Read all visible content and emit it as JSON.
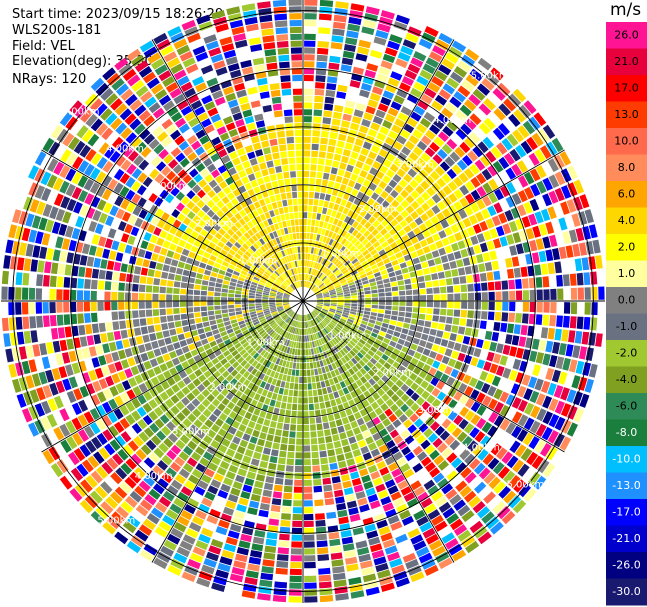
{
  "header": {
    "start_time": "Start time: 2023/09/15 18:26:29",
    "station": "WLS200s-181",
    "field": "Field: VEL",
    "elevation": "Elevation(deg): 35.30",
    "nrays": "NRays: 120"
  },
  "colorbar": {
    "unit": "m/s",
    "ticks": [
      "26.0",
      "21.0",
      "17.0",
      "13.0",
      "10.0",
      "8.0",
      "6.0",
      "4.0",
      "2.0",
      "1.0",
      "0.0",
      "-1.0",
      "-2.0",
      "-4.0",
      "-6.0",
      "-8.0",
      "-10.0",
      "-13.0",
      "-17.0",
      "-21.0",
      "-26.0",
      "-30.0"
    ],
    "colors": [
      "#ff1493",
      "#e8003c",
      "#ff0000",
      "#ff3c00",
      "#ff6a4d",
      "#ff8c5a",
      "#ffa500",
      "#ffd700",
      "#ffff00",
      "#ffffa0",
      "#808080",
      "#6a7282",
      "#a0c830",
      "#7fa020",
      "#2e8b57",
      "#1a7f3c",
      "#00bfff",
      "#1e90ff",
      "#0000ff",
      "#0000cd",
      "#000080",
      "#191970"
    ]
  },
  "chart_data": {
    "type": "heatmap",
    "title": "",
    "field": "VEL",
    "units": "m/s",
    "nrays": 120,
    "range_rings_km": [
      {
        "label": "1.00km"
      },
      {
        "label": "2.00km"
      },
      {
        "label": "3.00km"
      },
      {
        "label": "4.00km"
      },
      {
        "label": "5.00km"
      }
    ],
    "max_range_km": 5.2,
    "spokes_deg": [
      0,
      30,
      60,
      90,
      120,
      150,
      180,
      210,
      240,
      270,
      300,
      330
    ],
    "color_levels": [
      26.0,
      21.0,
      17.0,
      13.0,
      10.0,
      8.0,
      6.0,
      4.0,
      2.0,
      1.0,
      0.0,
      -1.0,
      -2.0,
      -4.0,
      -6.0,
      -8.0,
      -10.0,
      -13.0,
      -17.0,
      -21.0,
      -26.0,
      -30.0
    ],
    "regions": [
      {
        "description": "positive (yellow) velocities north",
        "azimuth_range": [
          -80,
          80
        ],
        "range_km": [
          0.3,
          3.4
        ],
        "value": 3.0
      },
      {
        "description": "negative (olive green) velocities south",
        "azimuth_range": [
          100,
          260
        ],
        "range_km": [
          0.3,
          3.6
        ],
        "value": -3.0
      },
      {
        "description": "near-zero (gray) band east-west",
        "azimuth_range": [
          80,
          100
        ],
        "range_km": [
          0.3,
          3.3
        ],
        "value": 0.0
      },
      {
        "description": "noise at far range",
        "range_km": [
          3.5,
          5.2
        ],
        "value": null
      }
    ]
  }
}
